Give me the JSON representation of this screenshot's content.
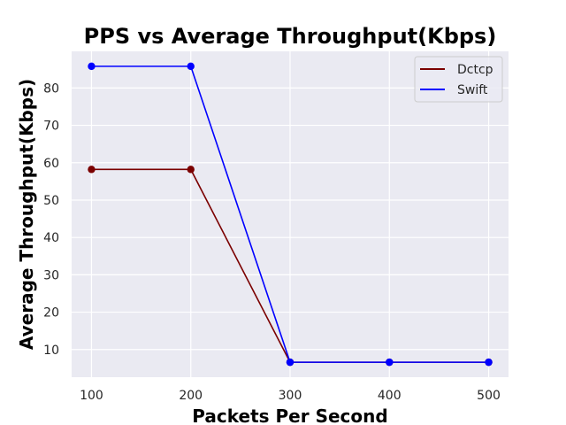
{
  "chart_data": {
    "type": "line",
    "title": "PPS vs Average Throughput(Kbps)",
    "xlabel": "Packets Per Second",
    "ylabel": "Average Throughput(Kbps)",
    "x": [
      100,
      200,
      300,
      400,
      500
    ],
    "xlim": [
      80,
      520
    ],
    "ylim": [
      2.6,
      89.8
    ],
    "xticks": [
      100,
      200,
      300,
      400,
      500
    ],
    "yticks": [
      10,
      20,
      30,
      40,
      50,
      60,
      70,
      80
    ],
    "grid": true,
    "legend_position": "top-right",
    "series": [
      {
        "name": "Dctcp",
        "color": "#7b0000",
        "values": [
          58.2,
          58.2,
          6.6,
          6.6,
          6.6
        ]
      },
      {
        "name": "Swift",
        "color": "#0000ff",
        "values": [
          85.8,
          85.8,
          6.6,
          6.6,
          6.6
        ]
      }
    ]
  },
  "colors": {
    "plot_background": "#eaeaf2",
    "grid": "#ffffff"
  }
}
